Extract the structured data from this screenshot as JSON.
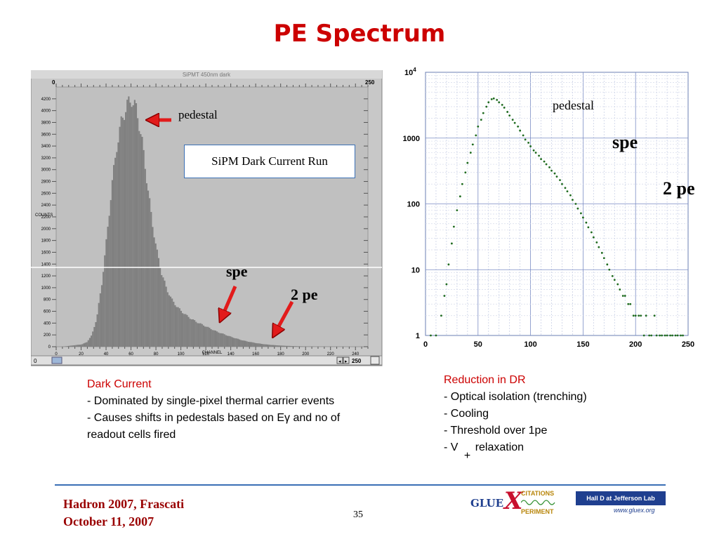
{
  "slide": {
    "title": "PE Spectrum",
    "page_number": "35",
    "footer_line1": "Hadron 2007, Frascati",
    "footer_line2": "October 11, 2007"
  },
  "left_panel": {
    "window_title": "SiPMT 450nm dark",
    "top_left": "0",
    "top_right": "250",
    "x_axis_name": "CHANNEL",
    "y_axis_name": "COUNTS",
    "scroll_left": "0",
    "scroll_right": "250",
    "box_text": "SiPM Dark Current Run",
    "pedestal_label": "pedestal",
    "spe_label": "spe",
    "pe2_label": "2 pe",
    "notes": [
      "Dark Current",
      "- Dominated by single-pixel thermal carrier events",
      "- Causes shifts in pedestals based on Eγ and no of readout cells fired"
    ]
  },
  "right_panel": {
    "pedestal_label": "pedestal",
    "spe_label": "spe",
    "pe2_label": "2 pe",
    "notes": [
      "Reduction in DR",
      "- Optical isolation (trenching)",
      "- Cooling",
      "- Threshold over 1pe",
      "- V",
      "+",
      "relaxation"
    ]
  },
  "logos": {
    "gluex_glu": "GLUE",
    "gluex_x": "X",
    "gluex_top": "CITATIONS",
    "gluex_bottom": "PERIMENT",
    "halld_line1": "Hall D at Jefferson Lab",
    "halld_line2": "www.gluex.org"
  },
  "colors": {
    "title": "#cc0000",
    "notes": "#cc0000",
    "histogram_bar": "#808080",
    "histogram_bg": "#c0c0c0",
    "scatter_points": "#1f6b1f",
    "arrow": "#e21b1b",
    "footer": "#990000",
    "footer_rule": "#3a6fb5"
  },
  "chart_data": [
    {
      "type": "bar",
      "title": "SiPMT 450nm dark",
      "xlabel": "CHANNEL",
      "ylabel": "COUNTS",
      "xlim": [
        0,
        250
      ],
      "ylim": [
        0,
        4400
      ],
      "y_ticks": [
        "0",
        "200",
        "400",
        "600",
        "800",
        "1000",
        "1200",
        "1400",
        "1600",
        "1800",
        "2000",
        "2200",
        "2400",
        "2600",
        "2800",
        "3000",
        "3200",
        "3400",
        "3600",
        "3800",
        "4000",
        "4200"
      ],
      "x_ticks": [
        "0",
        "20",
        "40",
        "60",
        "80",
        "100",
        "120",
        "140",
        "160",
        "180",
        "200",
        "220",
        "240"
      ],
      "x": [
        0,
        4,
        8,
        12,
        16,
        20,
        24,
        28,
        32,
        36,
        40,
        44,
        48,
        52,
        56,
        60,
        64,
        68,
        72,
        76,
        80,
        84,
        88,
        92,
        96,
        100,
        104,
        108,
        112,
        116,
        120,
        124,
        128,
        132,
        136,
        140,
        144,
        148,
        152,
        156,
        160,
        164,
        168,
        172,
        176,
        180,
        184,
        188,
        192,
        196,
        200,
        210,
        220,
        230,
        240,
        250
      ],
      "values": [
        0,
        0,
        10,
        20,
        30,
        40,
        80,
        200,
        500,
        1100,
        1900,
        2800,
        3500,
        3950,
        4200,
        4300,
        4100,
        3600,
        2900,
        2200,
        1650,
        1250,
        980,
        800,
        680,
        590,
        520,
        460,
        410,
        370,
        330,
        290,
        250,
        220,
        190,
        160,
        135,
        110,
        90,
        75,
        60,
        48,
        38,
        30,
        24,
        19,
        15,
        12,
        9,
        7,
        5,
        3,
        2,
        1,
        0,
        0
      ],
      "grid": false
    },
    {
      "type": "scatter",
      "xlim": [
        0,
        250
      ],
      "ylim": [
        1,
        10000
      ],
      "yscale": "log",
      "x_ticks": [
        "0",
        "50",
        "100",
        "150",
        "200",
        "250"
      ],
      "y_ticks": [
        "1",
        "10",
        "100",
        "1000",
        "10^4"
      ],
      "grid": true,
      "x": [
        5,
        10,
        15,
        18,
        20,
        22,
        25,
        27,
        30,
        33,
        35,
        38,
        40,
        43,
        45,
        48,
        50,
        53,
        55,
        58,
        60,
        63,
        65,
        68,
        70,
        73,
        75,
        78,
        80,
        83,
        85,
        88,
        90,
        93,
        95,
        98,
        100,
        103,
        105,
        108,
        110,
        113,
        115,
        118,
        120,
        123,
        125,
        128,
        130,
        133,
        135,
        138,
        140,
        143,
        145,
        148,
        150,
        153,
        155,
        158,
        160,
        163,
        165,
        168,
        170,
        173,
        175,
        178,
        180,
        183,
        185,
        188,
        190,
        193,
        195,
        198,
        200,
        203,
        205,
        208,
        210,
        213,
        215,
        218,
        220,
        223,
        225,
        228,
        230,
        233,
        235,
        238,
        240,
        243,
        245
      ],
      "y": [
        1,
        1,
        2,
        4,
        6,
        12,
        25,
        45,
        80,
        130,
        200,
        300,
        420,
        600,
        800,
        1100,
        1500,
        1900,
        2400,
        3000,
        3500,
        3900,
        4000,
        3800,
        3500,
        3200,
        2900,
        2500,
        2200,
        1900,
        1700,
        1500,
        1300,
        1100,
        950,
        850,
        750,
        650,
        600,
        540,
        480,
        440,
        400,
        360,
        320,
        290,
        260,
        230,
        200,
        175,
        155,
        135,
        115,
        100,
        85,
        72,
        62,
        52,
        44,
        37,
        31,
        26,
        22,
        18,
        15,
        12,
        10,
        8,
        7,
        6,
        5,
        4,
        4,
        3,
        3,
        2,
        2,
        2,
        2,
        1,
        2,
        1,
        1,
        2,
        1,
        1,
        1,
        1,
        1,
        1,
        1,
        1,
        1,
        1,
        1
      ]
    }
  ]
}
